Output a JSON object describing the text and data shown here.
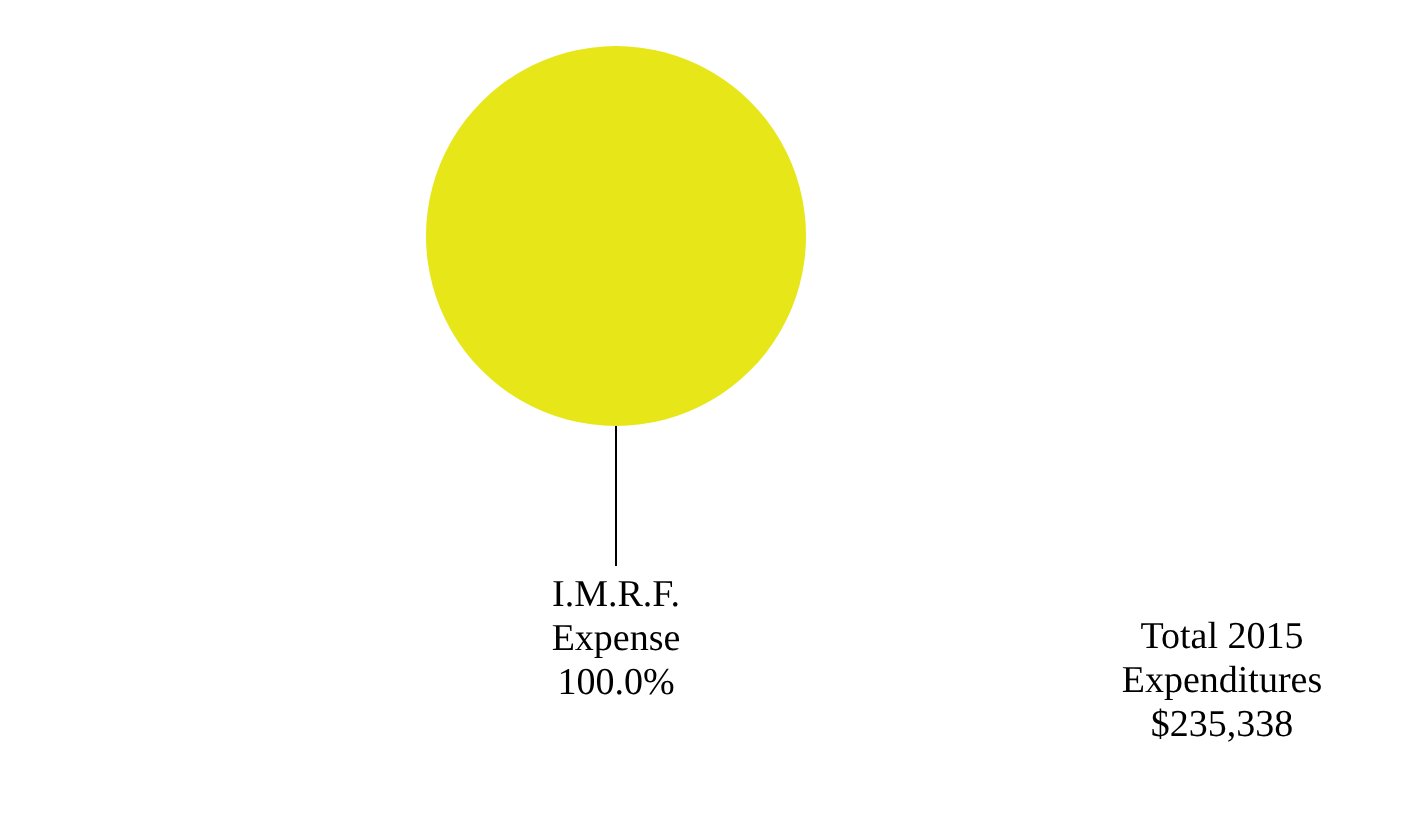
{
  "chart_data": {
    "type": "pie",
    "categories": [
      "I.M.R.F. Expense"
    ],
    "values": [
      100
    ],
    "colors": [
      "#e6e619"
    ],
    "value_labels": [
      "100.0%"
    ],
    "annotations": [
      "Total 2015 Expenditures $235,338"
    ]
  }
}
